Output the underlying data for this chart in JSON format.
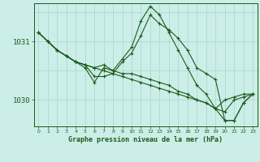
{
  "title": "Graphe pression niveau de la mer (hPa)",
  "background_color": "#cceee8",
  "grid_color": "#aad4cc",
  "line_color": "#1a5c1a",
  "marker_color": "#1a5c1a",
  "xlim": [
    -0.5,
    23.5
  ],
  "ylim": [
    1029.55,
    1031.65
  ],
  "yticks": [
    1030.0,
    1031.0
  ],
  "ytick_labels": [
    "1030",
    "1031"
  ],
  "xticks": [
    0,
    1,
    2,
    3,
    4,
    5,
    6,
    7,
    8,
    9,
    10,
    11,
    12,
    13,
    14,
    15,
    16,
    17,
    18,
    19,
    20,
    21,
    22,
    23
  ],
  "hgrid_vals": [
    1029.5,
    1030.0,
    1030.5,
    1031.0,
    1031.5
  ],
  "series": [
    {
      "x": [
        0,
        1,
        2,
        3,
        4,
        5,
        6,
        7,
        8,
        9,
        10,
        11,
        12,
        13,
        14,
        15,
        16,
        17,
        18,
        19,
        20,
        21,
        22,
        23
      ],
      "y": [
        1031.15,
        1031.0,
        1030.85,
        1030.75,
        1030.65,
        1030.6,
        1030.55,
        1030.5,
        1030.45,
        1030.4,
        1030.35,
        1030.3,
        1030.25,
        1030.2,
        1030.15,
        1030.1,
        1030.05,
        1030.0,
        1029.95,
        1029.85,
        1030.0,
        1030.05,
        1030.1,
        1030.1
      ]
    },
    {
      "x": [
        0,
        1,
        2,
        3,
        4,
        5,
        6,
        7,
        8,
        9,
        10,
        11,
        12,
        13,
        14,
        15,
        16,
        17,
        18,
        19,
        20,
        21,
        22,
        23
      ],
      "y": [
        1031.15,
        1031.0,
        1030.85,
        1030.75,
        1030.65,
        1030.6,
        1030.4,
        1030.4,
        1030.45,
        1030.65,
        1030.8,
        1031.1,
        1031.45,
        1031.3,
        1031.2,
        1031.05,
        1030.85,
        1030.55,
        1030.45,
        1030.35,
        1029.65,
        1029.65,
        1029.95,
        1030.1
      ]
    },
    {
      "x": [
        0,
        1,
        2,
        3,
        4,
        5,
        6,
        7,
        8,
        9,
        10,
        11,
        12,
        13,
        14,
        15,
        16,
        17,
        18,
        19,
        20,
        21,
        22,
        23
      ],
      "y": [
        1031.15,
        1031.0,
        1030.85,
        1030.75,
        1030.65,
        1030.55,
        1030.3,
        1030.55,
        1030.5,
        1030.7,
        1030.9,
        1031.35,
        1031.6,
        1031.45,
        1031.15,
        1030.85,
        1030.55,
        1030.25,
        1030.1,
        1029.85,
        1029.65,
        1029.65,
        1029.95,
        1030.1
      ]
    },
    {
      "x": [
        0,
        1,
        2,
        3,
        4,
        5,
        6,
        7,
        8,
        9,
        10,
        11,
        12,
        13,
        14,
        15,
        16,
        17,
        18,
        19,
        20,
        21,
        22,
        23
      ],
      "y": [
        1031.15,
        1031.0,
        1030.85,
        1030.75,
        1030.65,
        1030.6,
        1030.55,
        1030.6,
        1030.5,
        1030.45,
        1030.45,
        1030.4,
        1030.35,
        1030.3,
        1030.25,
        1030.15,
        1030.1,
        1030.0,
        1029.95,
        1029.85,
        1029.8,
        1030.0,
        1030.05,
        1030.1
      ]
    }
  ]
}
